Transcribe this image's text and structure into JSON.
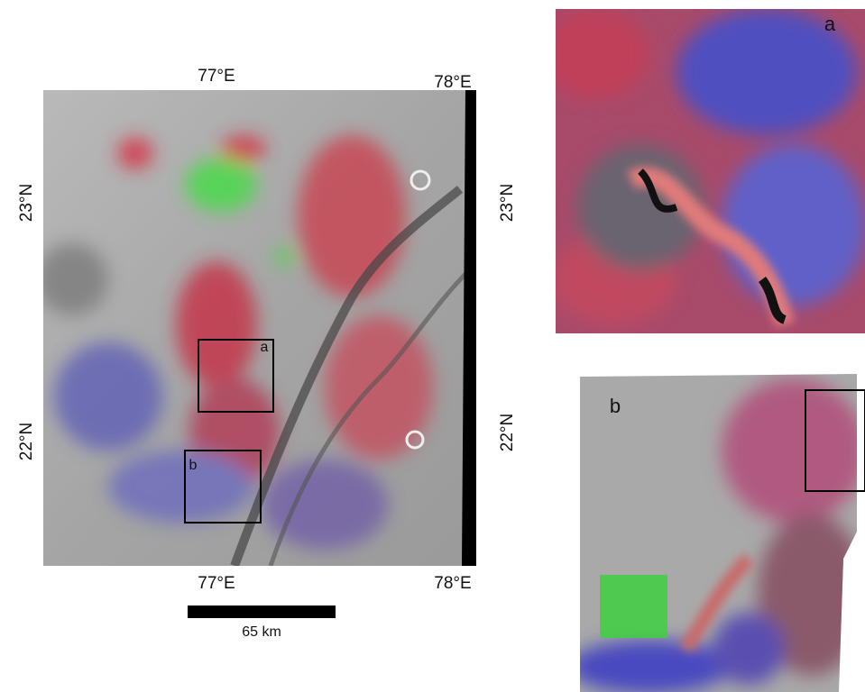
{
  "map": {
    "longitude_labels_top": [
      "77°E",
      "78°E"
    ],
    "longitude_labels_bottom": [
      "77°E",
      "78°E"
    ],
    "latitude_labels_left": [
      "23°N",
      "22°N"
    ],
    "latitude_labels_right": [
      "23°N",
      "22°N"
    ],
    "box_labels": [
      "a",
      "b"
    ],
    "scale_bar": "65 km"
  },
  "insets": [
    {
      "label": "a"
    },
    {
      "label": "b"
    }
  ]
}
